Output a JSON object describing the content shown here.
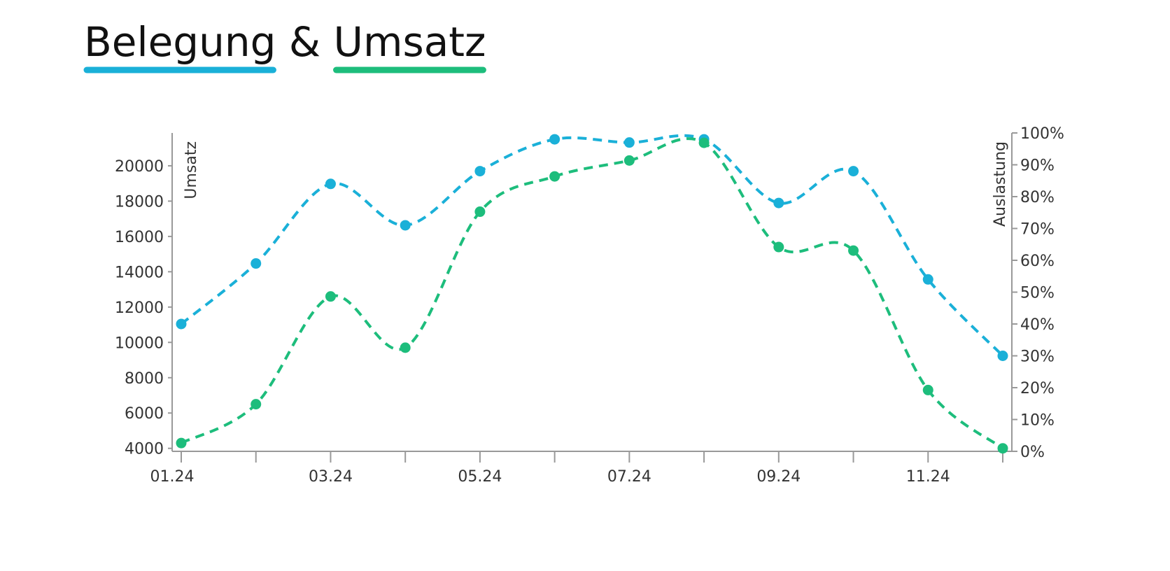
{
  "chart_data": {
    "type": "line",
    "title": "Belegung & Umsatz",
    "categories": [
      "01.24",
      null,
      "03.24",
      null,
      "05.24",
      null,
      "07.24",
      null,
      "09.24",
      null,
      "11.24",
      null
    ],
    "y_label": "Umsatz",
    "y2_label": "Auslastung",
    "ylim": [
      3830,
      21860
    ],
    "yticks": [
      4000,
      6000,
      8000,
      10000,
      12000,
      14000,
      16000,
      18000,
      20000
    ],
    "y2lim": [
      0,
      100
    ],
    "y2ticks": [
      {
        "value": 0,
        "label": "0%"
      },
      {
        "value": 10,
        "label": "10%"
      },
      {
        "value": 20,
        "label": "20%"
      },
      {
        "value": 30,
        "label": "30%"
      },
      {
        "value": 40,
        "label": "40%"
      },
      {
        "value": 50,
        "label": "50%"
      },
      {
        "value": 60,
        "label": "60%"
      },
      {
        "value": 70,
        "label": "70%"
      },
      {
        "value": 80,
        "label": "80%"
      },
      {
        "value": 90,
        "label": "90%"
      },
      {
        "value": 100,
        "label": "100%"
      }
    ],
    "dashed": true,
    "series": [
      {
        "name": "Belegung",
        "color": "#1ab0d8",
        "axis": "y2",
        "values": [
          40,
          59,
          84,
          71,
          88,
          98,
          97,
          98,
          78,
          88,
          54,
          30
        ]
      },
      {
        "name": "Umsatz",
        "color": "#1dbd7c",
        "axis": "y",
        "values": [
          4300,
          6500,
          12600,
          9700,
          17400,
          19400,
          20300,
          21300,
          15400,
          15200,
          7300,
          4000
        ]
      }
    ]
  }
}
